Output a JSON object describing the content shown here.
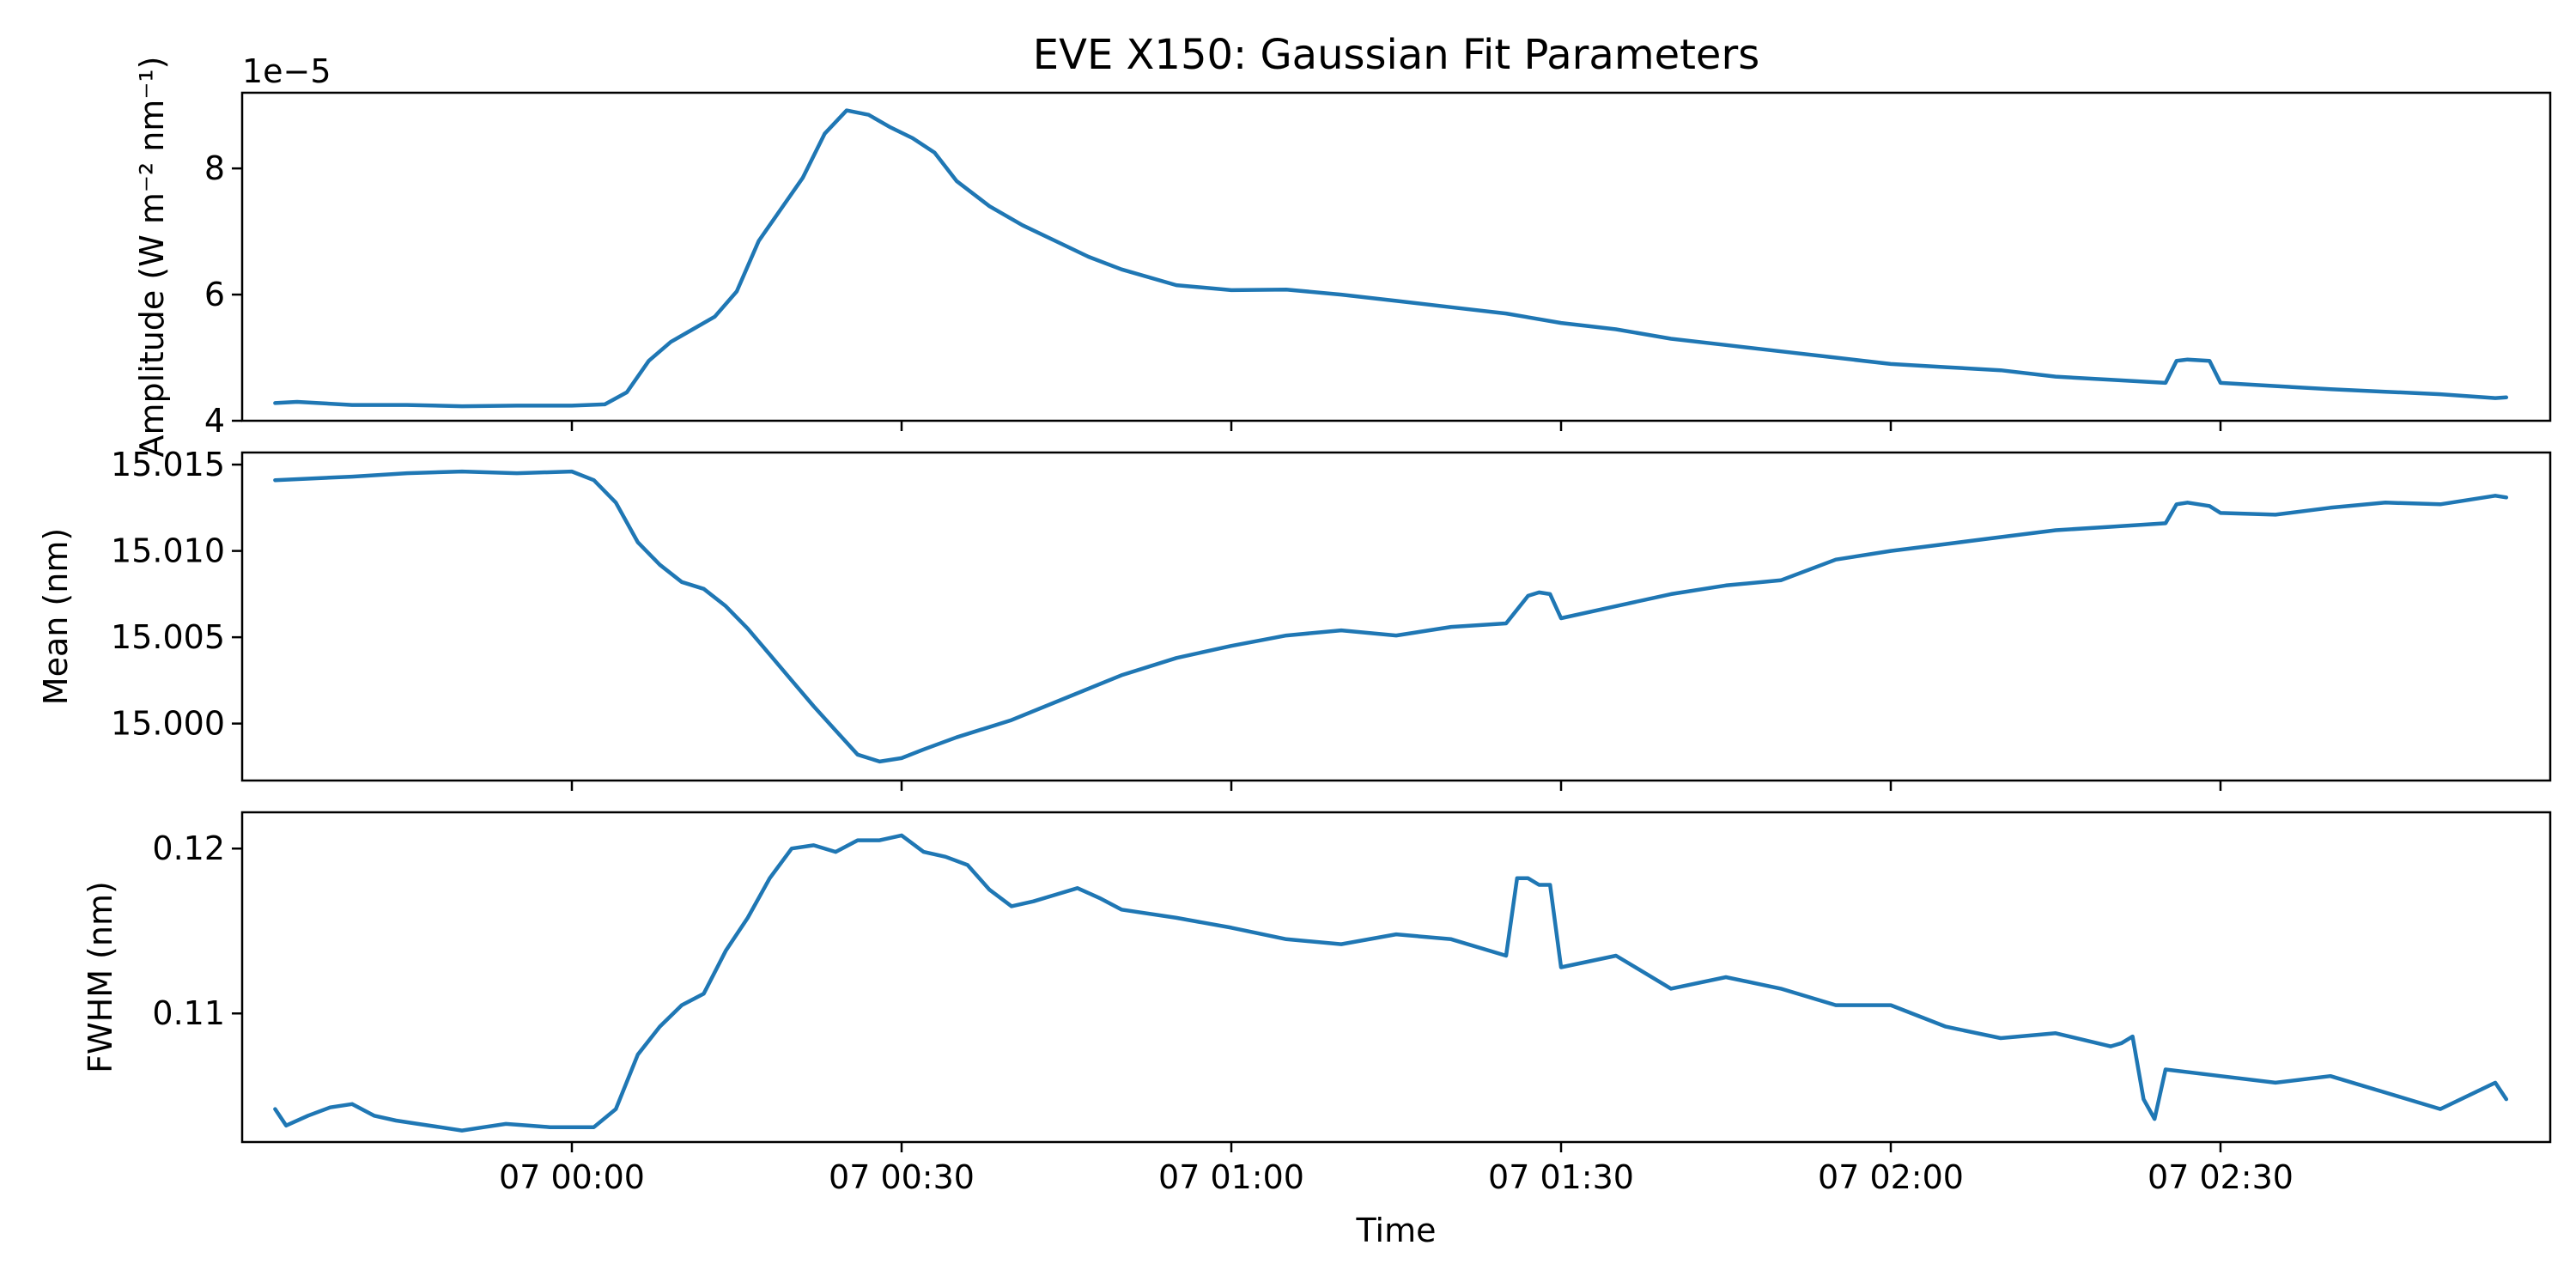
{
  "chart_data": {
    "type": "line",
    "title": "EVE X150: Gaussian Fit Parameters",
    "xlabel": "Time",
    "x_ticks": [
      "07 00:00",
      "07 00:30",
      "07 01:00",
      "07 01:30",
      "07 02:00",
      "07 02:30"
    ],
    "x_tick_minutes": [
      0,
      30,
      60,
      90,
      120,
      150
    ],
    "xlim_minutes": [
      -30,
      180
    ],
    "panels": [
      {
        "ylabel": "Amplitude (W m⁻² nm⁻¹)",
        "offset_text": "1e−5",
        "ylim": [
          4.0,
          9.2
        ],
        "yticks": [
          4,
          6,
          8
        ],
        "ytick_labels": [
          "4",
          "6",
          "8"
        ],
        "series_x": [
          -27,
          -25,
          -20,
          -15,
          -10,
          -5,
          0,
          3,
          5,
          7,
          9,
          11,
          13,
          15,
          17,
          19,
          21,
          23,
          25,
          27,
          29,
          31,
          33,
          35,
          38,
          41,
          44,
          47,
          50,
          55,
          60,
          65,
          70,
          75,
          80,
          85,
          90,
          95,
          100,
          105,
          110,
          115,
          120,
          125,
          130,
          135,
          140,
          145,
          146,
          147,
          149,
          150,
          155,
          160,
          165,
          170,
          175,
          176
        ],
        "series_y": [
          4.28,
          4.3,
          4.25,
          4.25,
          4.23,
          4.24,
          4.24,
          4.26,
          4.45,
          4.95,
          5.25,
          5.45,
          5.65,
          6.05,
          6.85,
          7.35,
          7.85,
          8.55,
          8.92,
          8.85,
          8.65,
          8.48,
          8.25,
          7.8,
          7.4,
          7.1,
          6.85,
          6.6,
          6.4,
          6.15,
          6.07,
          6.08,
          6.0,
          5.9,
          5.8,
          5.7,
          5.55,
          5.45,
          5.3,
          5.2,
          5.1,
          5.0,
          4.9,
          4.85,
          4.8,
          4.7,
          4.65,
          4.6,
          4.95,
          4.97,
          4.95,
          4.6,
          4.55,
          4.5,
          4.46,
          4.42,
          4.36,
          4.37
        ]
      },
      {
        "ylabel": "Mean (nm)",
        "offset_text": "",
        "ylim": [
          14.9967,
          15.0157
        ],
        "yticks": [
          15.0,
          15.005,
          15.01,
          15.015
        ],
        "ytick_labels": [
          "15.000",
          "15.005",
          "15.010",
          "15.015"
        ],
        "series_x": [
          -27,
          -20,
          -15,
          -10,
          -5,
          0,
          2,
          4,
          6,
          8,
          10,
          12,
          14,
          16,
          18,
          20,
          22,
          24,
          26,
          28,
          30,
          32,
          35,
          40,
          45,
          50,
          55,
          60,
          65,
          70,
          75,
          80,
          85,
          87,
          88,
          89,
          90,
          95,
          100,
          105,
          110,
          115,
          120,
          125,
          130,
          135,
          140,
          145,
          146,
          147,
          149,
          150,
          155,
          160,
          165,
          170,
          175,
          176
        ],
        "series_y": [
          15.0141,
          15.0143,
          15.0145,
          15.0146,
          15.0145,
          15.0146,
          15.0141,
          15.0128,
          15.0105,
          15.0092,
          15.0082,
          15.0078,
          15.0068,
          15.0055,
          15.004,
          15.0025,
          15.001,
          14.9996,
          14.9982,
          14.9978,
          14.998,
          14.9985,
          14.9992,
          15.0002,
          15.0015,
          15.0028,
          15.0038,
          15.0045,
          15.0051,
          15.0054,
          15.0051,
          15.0056,
          15.0058,
          15.0074,
          15.0076,
          15.0075,
          15.0061,
          15.0068,
          15.0075,
          15.008,
          15.0083,
          15.0095,
          15.01,
          15.0104,
          15.0108,
          15.0112,
          15.0114,
          15.0116,
          15.0127,
          15.0128,
          15.0126,
          15.0122,
          15.0121,
          15.0125,
          15.0128,
          15.0127,
          15.0132,
          15.0131
        ]
      },
      {
        "ylabel": "FWHM (nm)",
        "offset_text": "",
        "ylim": [
          0.1022,
          0.1222
        ],
        "yticks": [
          0.11,
          0.12
        ],
        "ytick_labels": [
          "0.11",
          "0.12"
        ],
        "series_x": [
          -27,
          -26,
          -24,
          -22,
          -20,
          -18,
          -16,
          -14,
          -12,
          -10,
          -8,
          -6,
          -4,
          -2,
          0,
          2,
          4,
          6,
          8,
          10,
          12,
          14,
          16,
          18,
          20,
          22,
          24,
          26,
          28,
          30,
          32,
          34,
          36,
          38,
          40,
          42,
          44,
          46,
          48,
          50,
          55,
          60,
          65,
          70,
          75,
          80,
          85,
          86,
          87,
          88,
          89,
          90,
          95,
          100,
          105,
          110,
          115,
          120,
          125,
          130,
          135,
          140,
          141,
          142,
          143,
          144,
          145,
          150,
          155,
          160,
          165,
          170,
          175,
          176
        ],
        "series_y": [
          0.1042,
          0.1032,
          0.1038,
          0.1043,
          0.1045,
          0.1038,
          0.1035,
          0.1033,
          0.1031,
          0.1029,
          0.1031,
          0.1033,
          0.1032,
          0.1031,
          0.1031,
          0.1031,
          0.1042,
          0.1075,
          0.1092,
          0.1105,
          0.1112,
          0.1138,
          0.1158,
          0.1182,
          0.12,
          0.1202,
          0.1198,
          0.1205,
          0.1205,
          0.1208,
          0.1198,
          0.1195,
          0.119,
          0.1175,
          0.1165,
          0.1168,
          0.1172,
          0.1176,
          0.117,
          0.1163,
          0.1158,
          0.1152,
          0.1145,
          0.1142,
          0.1148,
          0.1145,
          0.1135,
          0.1182,
          0.1182,
          0.1178,
          0.1178,
          0.1128,
          0.1135,
          0.1115,
          0.1122,
          0.1115,
          0.1105,
          0.1105,
          0.1092,
          0.1085,
          0.1088,
          0.108,
          0.1082,
          0.1086,
          0.1048,
          0.1036,
          0.1066,
          0.1062,
          0.1058,
          0.1062,
          0.1052,
          0.1042,
          0.1058,
          0.1048
        ]
      }
    ]
  }
}
